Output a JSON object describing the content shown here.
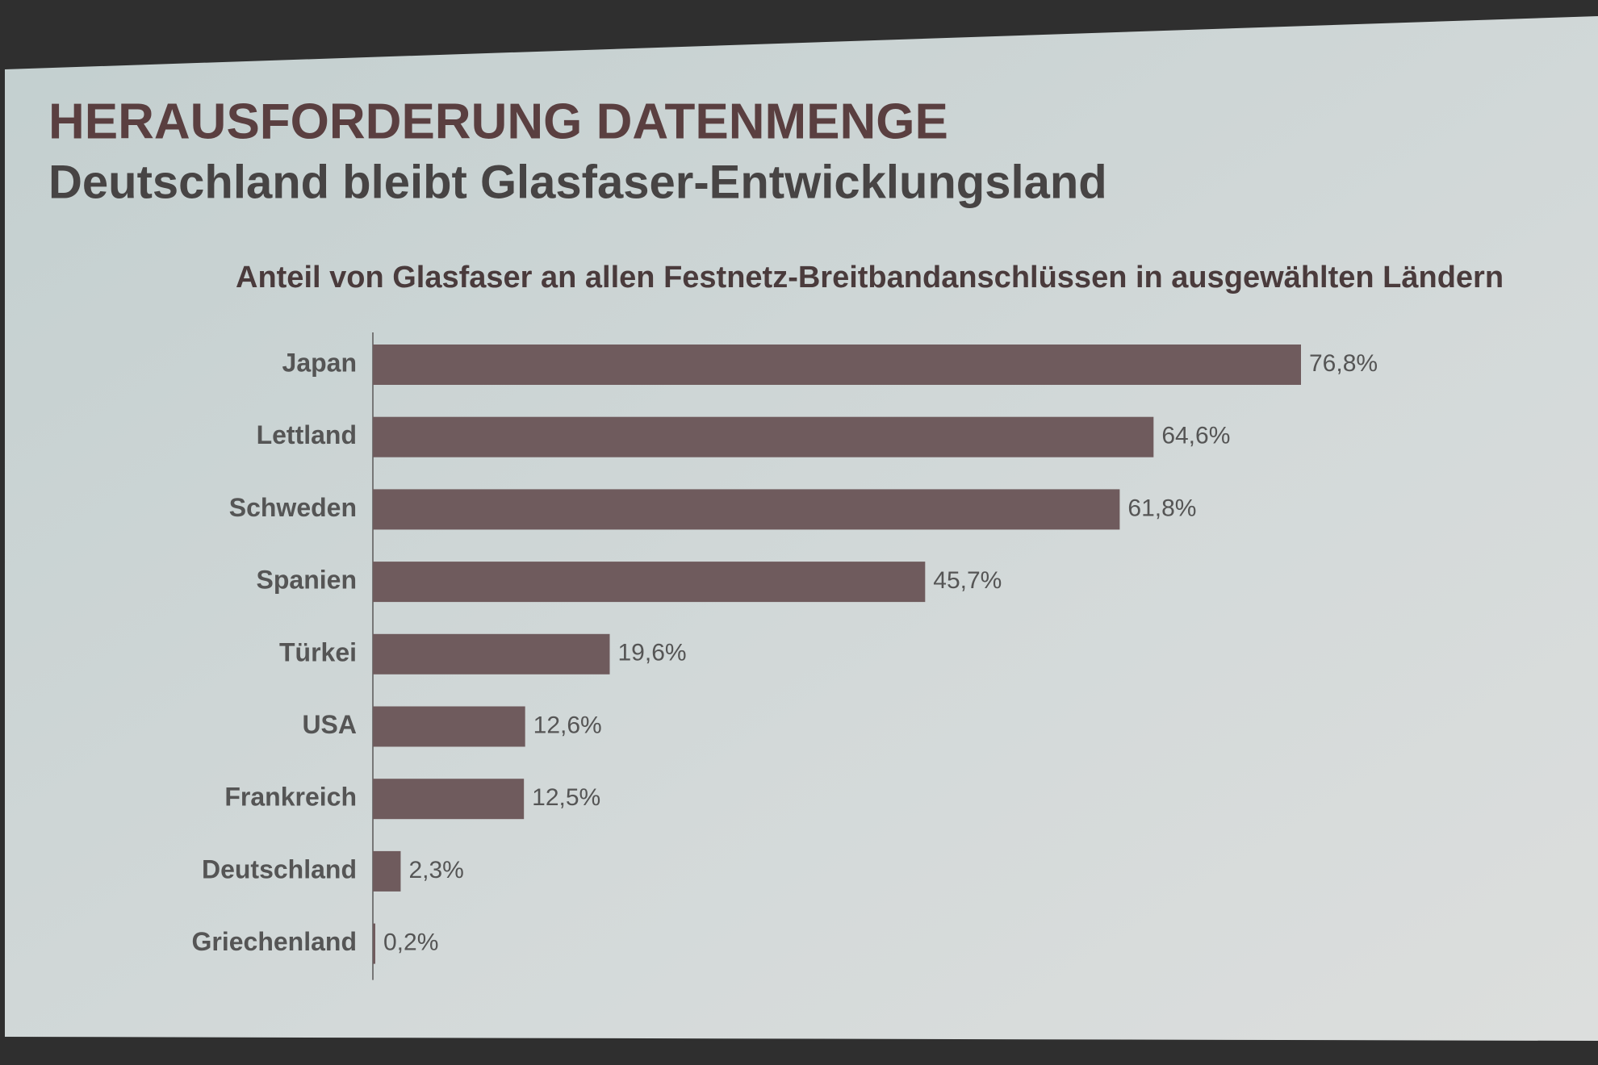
{
  "chart_data": {
    "type": "bar",
    "orientation": "horizontal",
    "title": "HERAUSFORDERUNG DATENMENGE",
    "subtitle": "Deutschland bleibt Glasfaser-Entwicklungsland",
    "chart_title": "Anteil von Glasfaser an allen Festnetz-Breitbandanschlüssen in ausgewählten Ländern",
    "categories": [
      "Japan",
      "Lettland",
      "Schweden",
      "Spanien",
      "Türkei",
      "USA",
      "Frankreich",
      "Deutschland",
      "Griechenland"
    ],
    "values": [
      76.8,
      64.6,
      61.8,
      45.7,
      19.6,
      12.6,
      12.5,
      2.3,
      0.2
    ],
    "value_labels": [
      "76,8%",
      "64,6%",
      "61,8%",
      "45,7%",
      "19,6%",
      "12,6%",
      "12,5%",
      "2,3%",
      "0,2%"
    ],
    "color": "#6f5b5d"
  }
}
